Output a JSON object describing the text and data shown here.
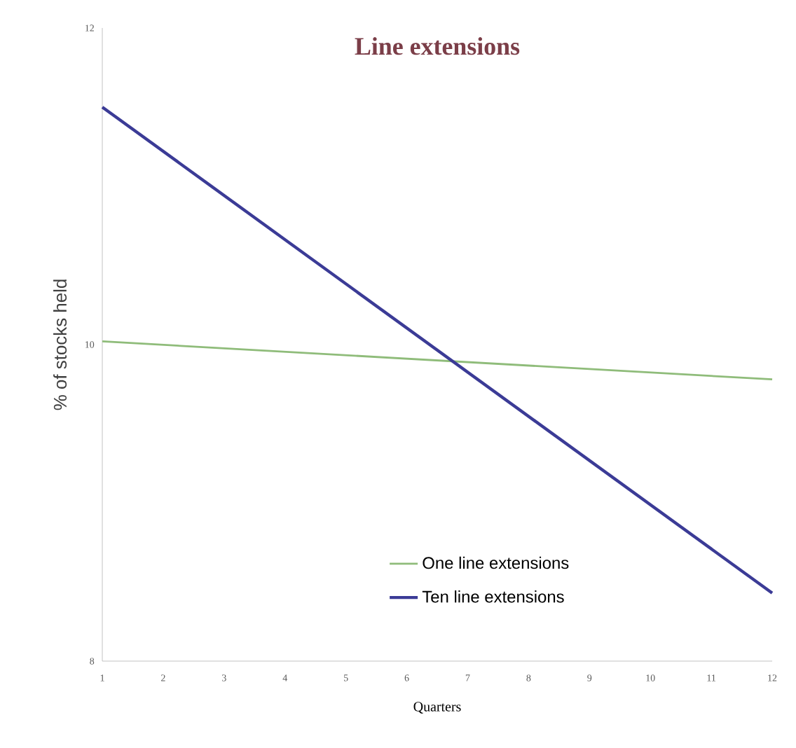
{
  "chart_data": {
    "type": "line",
    "title": "Line extensions",
    "xlabel": "Quarters",
    "ylabel": "% of stocks held",
    "x": [
      1,
      12
    ],
    "series": [
      {
        "name": "One line extensions",
        "color": "#8fbc7a",
        "values": [
          10.02,
          9.78
        ]
      },
      {
        "name": "Ten line extensions",
        "color": "#3b3b96",
        "values": [
          11.5,
          8.43
        ]
      }
    ],
    "xlim": [
      1,
      12
    ],
    "xticks": [
      1,
      2,
      3,
      4,
      5,
      6,
      7,
      8,
      9,
      10,
      11,
      12
    ],
    "ylim": [
      8,
      12
    ],
    "yticks": [
      8,
      10,
      12
    ],
    "grid": false,
    "legend": "bottom",
    "marker": "none",
    "line_style": "solid"
  }
}
